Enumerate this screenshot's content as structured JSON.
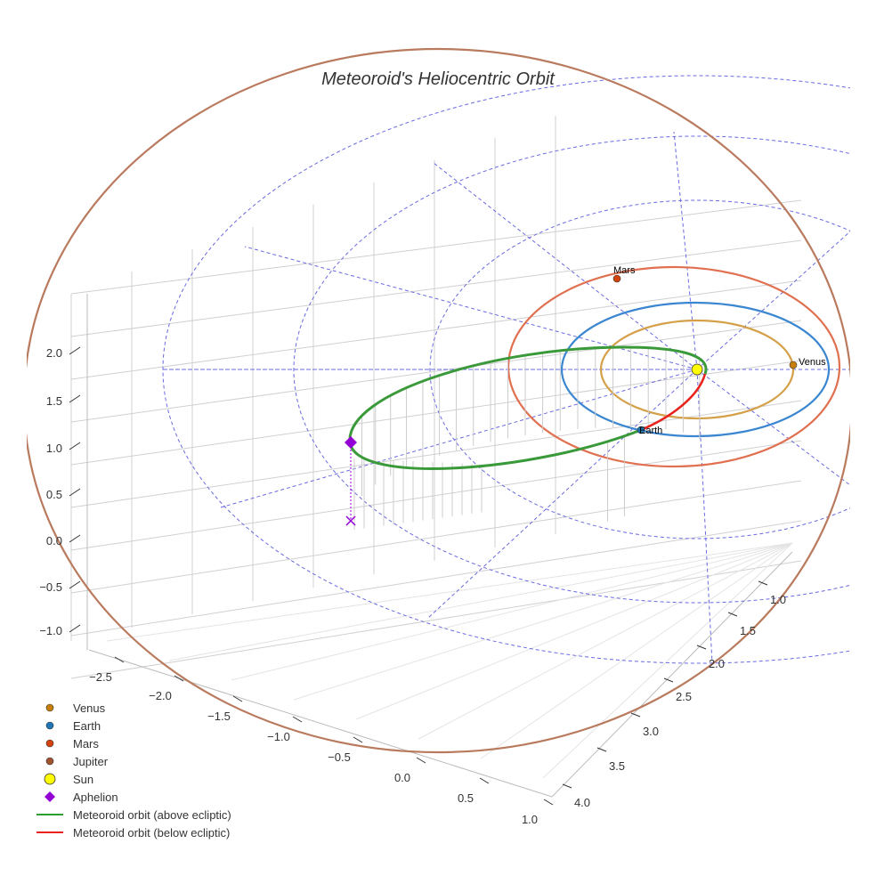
{
  "chart_data": {
    "type": "scatter3d",
    "title": "Meteoroid's Heliocentric Orbit",
    "axes": {
      "x": {
        "ticks": [
          "−2.5",
          "−2.0",
          "−1.5",
          "−1.0",
          "−0.5",
          "0.0",
          "0.5",
          "1.0"
        ],
        "range": [
          -2.7,
          1.1
        ]
      },
      "y": {
        "ticks": [
          "1.0",
          "1.5",
          "2.0",
          "2.5",
          "3.0",
          "3.5",
          "4.0"
        ],
        "range": [
          0.8,
          4.2
        ]
      },
      "z": {
        "ticks": [
          "2.0",
          "1.5",
          "1.0",
          "0.5",
          "0.0",
          "−0.5",
          "−1.0"
        ],
        "range": [
          -1.2,
          2.4
        ]
      }
    },
    "bodies": [
      {
        "name": "Venus",
        "label": "Venus",
        "color": "#c87f0a",
        "orbit_color": "#d4a04a",
        "orbit_radius_au": 0.72
      },
      {
        "name": "Earth",
        "label": "Earth",
        "color": "#1f77b4",
        "orbit_color": "#3a86d0",
        "orbit_radius_au": 1.0
      },
      {
        "name": "Mars",
        "label": "Mars",
        "color": "#d4420e",
        "orbit_color": "#e07050",
        "orbit_radius_au": 1.52
      },
      {
        "name": "Jupiter",
        "color": "#a0522d",
        "orbit_color": "#b97a5e",
        "orbit_radius_au": 5.2
      }
    ],
    "sun": {
      "name": "Sun",
      "color": "#ffff00",
      "position": [
        0,
        0,
        0
      ]
    },
    "legend": {
      "placement": "bottom-left",
      "entries": [
        {
          "label": "Venus",
          "symbol": "circle",
          "color": "#c87f0a"
        },
        {
          "label": "Earth",
          "symbol": "circle",
          "color": "#1f77b4"
        },
        {
          "label": "Mars",
          "symbol": "circle",
          "color": "#d4420e"
        },
        {
          "label": "Jupiter",
          "symbol": "circle",
          "color": "#a0522d"
        },
        {
          "label": "Sun",
          "symbol": "circle-large",
          "color": "#ffff00"
        },
        {
          "label": "Aphelion",
          "symbol": "diamond",
          "color": "#9400d3"
        },
        {
          "label": "Meteoroid orbit (above ecliptic)",
          "symbol": "line",
          "color": "#2ca02c"
        },
        {
          "label": "Meteoroid orbit (below ecliptic)",
          "symbol": "line",
          "color": "#e8221c"
        }
      ]
    }
  }
}
